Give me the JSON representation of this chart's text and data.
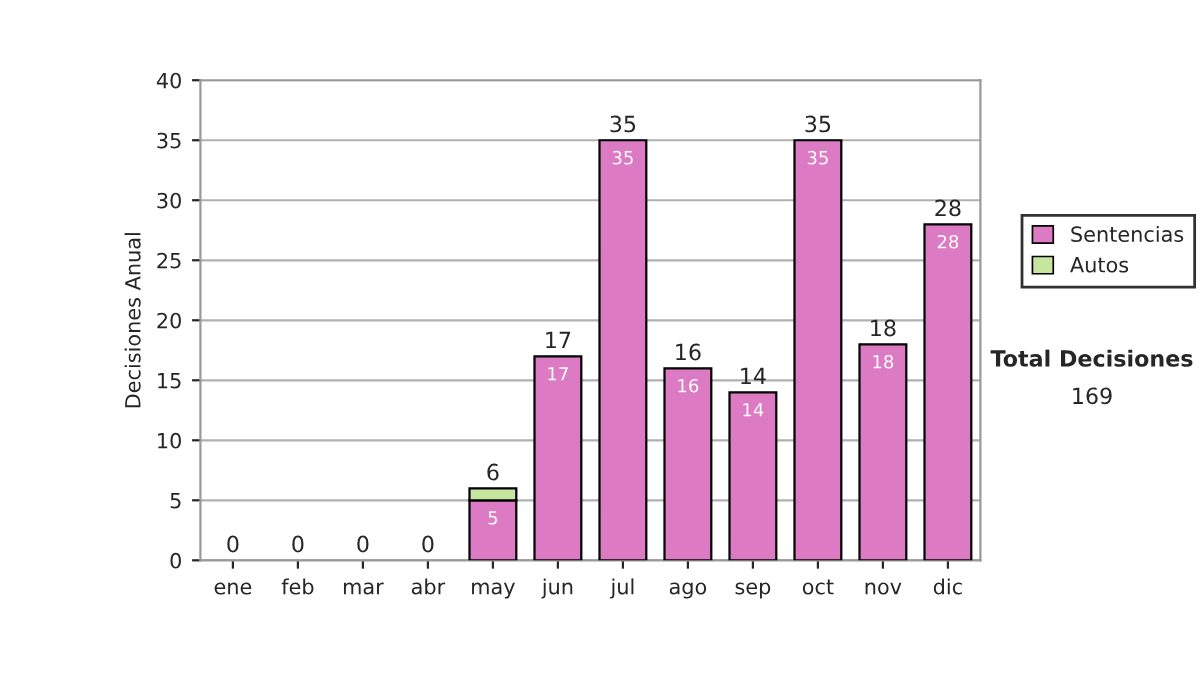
{
  "chart_data": {
    "type": "bar",
    "stacked": true,
    "ylabel": "Decisiones Anual",
    "categories": [
      "ene",
      "feb",
      "mar",
      "abr",
      "may",
      "jun",
      "jul",
      "ago",
      "sep",
      "oct",
      "nov",
      "dic"
    ],
    "series": [
      {
        "name": "Sentencias",
        "color": "#dd7ac4",
        "values": [
          0,
          0,
          0,
          0,
          5,
          17,
          35,
          16,
          14,
          35,
          18,
          28
        ],
        "value_labels": [
          null,
          null,
          null,
          null,
          "5",
          "17",
          "35",
          "16",
          "14",
          "35",
          "18",
          "28"
        ]
      },
      {
        "name": "Autos",
        "color": "#c6e6a0",
        "values": [
          0,
          0,
          0,
          0,
          1,
          0,
          0,
          0,
          0,
          0,
          0,
          0
        ]
      }
    ],
    "totals": [
      "0",
      "0",
      "0",
      "0",
      "6",
      "17",
      "35",
      "16",
      "14",
      "35",
      "18",
      "28"
    ],
    "ylim": [
      0,
      40
    ],
    "yticks": [
      0,
      5,
      10,
      15,
      20,
      25,
      30,
      35,
      40
    ],
    "grid": "y",
    "legend": "right",
    "annotations": [
      "Total Decisiones",
      "169"
    ]
  }
}
